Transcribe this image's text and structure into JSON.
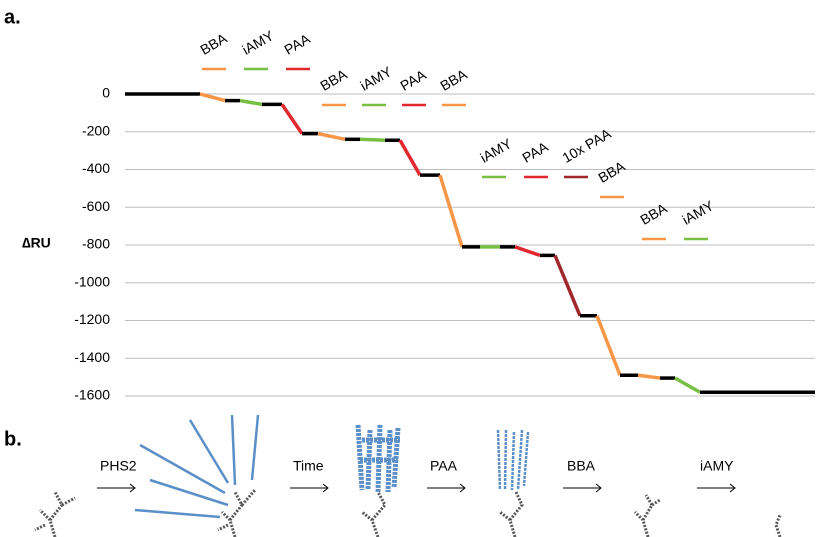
{
  "chart_data": {
    "type": "segments",
    "panel_label": "a.",
    "ylabel": "∆RU",
    "xlim": [
      0,
      690
    ],
    "ylim": [
      -1600,
      0
    ],
    "yticks": [
      0,
      -200,
      -400,
      -600,
      -800,
      -1000,
      -1200,
      -1400,
      -1600
    ],
    "grid": true,
    "segments": [
      {
        "color": "#000000",
        "x": [
          0,
          75
        ],
        "values": [
          0,
          0
        ]
      },
      {
        "color": "#f79646",
        "x": [
          75,
          100
        ],
        "values": [
          0,
          -35
        ]
      },
      {
        "color": "#000000",
        "x": [
          100,
          115
        ],
        "values": [
          -35,
          -35
        ]
      },
      {
        "color": "#77c043",
        "x": [
          115,
          137
        ],
        "values": [
          -35,
          -55
        ]
      },
      {
        "color": "#000000",
        "x": [
          137,
          157
        ],
        "values": [
          -55,
          -55
        ]
      },
      {
        "color": "#e0282e",
        "x": [
          157,
          177
        ],
        "values": [
          -55,
          -210
        ]
      },
      {
        "color": "#000000",
        "x": [
          177,
          193
        ],
        "values": [
          -210,
          -210
        ]
      },
      {
        "color": "#f79646",
        "x": [
          193,
          220
        ],
        "values": [
          -210,
          -240
        ]
      },
      {
        "color": "#000000",
        "x": [
          220,
          235
        ],
        "values": [
          -240,
          -240
        ]
      },
      {
        "color": "#77c043",
        "x": [
          235,
          260
        ],
        "values": [
          -240,
          -245
        ]
      },
      {
        "color": "#000000",
        "x": [
          260,
          275
        ],
        "values": [
          -245,
          -245
        ]
      },
      {
        "color": "#e0282e",
        "x": [
          275,
          295
        ],
        "values": [
          -245,
          -430
        ]
      },
      {
        "color": "#000000",
        "x": [
          295,
          315
        ],
        "values": [
          -430,
          -430
        ]
      },
      {
        "color": "#f79646",
        "x": [
          315,
          337
        ],
        "values": [
          -430,
          -810
        ]
      },
      {
        "color": "#000000",
        "x": [
          337,
          355
        ],
        "values": [
          -810,
          -810
        ]
      },
      {
        "color": "#77c043",
        "x": [
          355,
          375
        ],
        "values": [
          -810,
          -810
        ]
      },
      {
        "color": "#000000",
        "x": [
          375,
          390
        ],
        "values": [
          -810,
          -810
        ]
      },
      {
        "color": "#e0282e",
        "x": [
          390,
          415
        ],
        "values": [
          -810,
          -855
        ]
      },
      {
        "color": "#000000",
        "x": [
          415,
          430
        ],
        "values": [
          -855,
          -855
        ]
      },
      {
        "color": "#a0282c",
        "x": [
          430,
          455
        ],
        "values": [
          -855,
          -1175
        ]
      },
      {
        "color": "#000000",
        "x": [
          455,
          472
        ],
        "values": [
          -1175,
          -1175
        ]
      },
      {
        "color": "#f79646",
        "x": [
          472,
          495
        ],
        "values": [
          -1175,
          -1490
        ]
      },
      {
        "color": "#000000",
        "x": [
          495,
          513
        ],
        "values": [
          -1490,
          -1490
        ]
      },
      {
        "color": "#f79646",
        "x": [
          513,
          535
        ],
        "values": [
          -1490,
          -1505
        ]
      },
      {
        "color": "#000000",
        "x": [
          535,
          550
        ],
        "values": [
          -1505,
          -1505
        ]
      },
      {
        "color": "#77c043",
        "x": [
          550,
          575
        ],
        "values": [
          -1505,
          -1580
        ]
      },
      {
        "color": "#000000",
        "x": [
          575,
          690
        ],
        "values": [
          -1580,
          -1580
        ]
      }
    ],
    "annotations": [
      {
        "text": "BBA",
        "color": "#f79646"
      },
      {
        "text": "iAMY",
        "color": "#77c043"
      },
      {
        "text": "PAA",
        "color": "#e0282e"
      },
      {
        "text": "BBA",
        "color": "#f79646"
      },
      {
        "text": "iAMY",
        "color": "#77c043"
      },
      {
        "text": "PAA",
        "color": "#e0282e"
      },
      {
        "text": "BBA",
        "color": "#f79646"
      },
      {
        "text": "iAMY",
        "color": "#77c043"
      },
      {
        "text": "PAA",
        "color": "#e0282e"
      },
      {
        "text": "10x PAA",
        "color": "#a0282c"
      },
      {
        "text": "BBA",
        "color": "#f79646"
      },
      {
        "text": "BBA",
        "color": "#f79646"
      },
      {
        "text": "iAMY",
        "color": "#77c043"
      }
    ]
  },
  "diagram": {
    "panel_label": "b.",
    "steps": [
      "PHS2",
      "Time",
      "PAA",
      "BBA",
      "iAMY"
    ]
  }
}
